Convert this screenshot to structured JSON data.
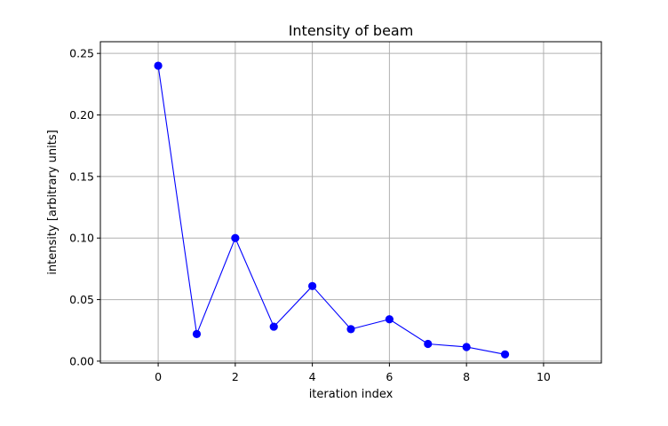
{
  "chart_data": {
    "type": "line",
    "title": "Intensity of beam",
    "xlabel": "iteration index",
    "ylabel": "intensity [arbitrary units]",
    "xlim": [
      -1.5,
      11.5
    ],
    "ylim": [
      -0.0015,
      0.2595
    ],
    "xticks": [
      0,
      2,
      4,
      6,
      8,
      10
    ],
    "xtick_labels": [
      "0",
      "2",
      "4",
      "6",
      "8",
      "10"
    ],
    "yticks": [
      0.0,
      0.05,
      0.1,
      0.15,
      0.2,
      0.25
    ],
    "ytick_labels": [
      "0.00",
      "0.05",
      "0.10",
      "0.15",
      "0.20",
      "0.25"
    ],
    "grid": true,
    "series": [
      {
        "x": [
          0,
          1,
          2,
          3,
          4,
          5,
          6,
          7,
          8,
          9
        ],
        "values": [
          0.24,
          0.022,
          0.1,
          0.028,
          0.061,
          0.026,
          0.034,
          0.014,
          0.0115,
          0.0055
        ],
        "color": "#0000ff",
        "marker": "circle"
      }
    ]
  }
}
